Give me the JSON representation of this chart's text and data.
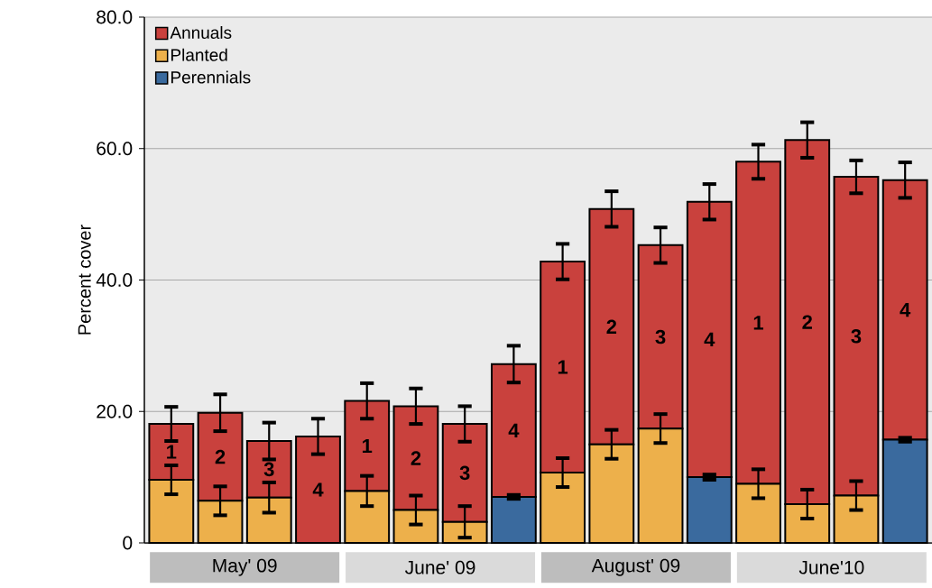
{
  "chart_data": {
    "type": "bar",
    "stacked": true,
    "ylabel": "Percent cover",
    "categories": [
      "1",
      "2",
      "3",
      "4",
      "1",
      "2",
      "3",
      "4",
      "1",
      "2",
      "3",
      "4",
      "1",
      "2",
      "3",
      "4"
    ],
    "series": [
      {
        "name": "Perennials",
        "color": "#3a6a9e",
        "values": [
          0,
          0,
          0,
          0,
          0,
          0,
          0,
          7.0,
          0,
          0,
          0,
          10.0,
          0,
          0,
          0,
          15.7
        ],
        "errors": [
          null,
          null,
          null,
          null,
          null,
          null,
          null,
          0.3,
          null,
          null,
          null,
          0.4,
          null,
          null,
          null,
          0.3
        ]
      },
      {
        "name": "Planted",
        "color": "#edb04b",
        "values": [
          9.6,
          6.4,
          6.9,
          0,
          7.9,
          5.0,
          3.2,
          0,
          10.7,
          15.0,
          17.4,
          0,
          9.0,
          5.9,
          7.2,
          0
        ],
        "errors": [
          2.2,
          2.2,
          2.3,
          null,
          2.3,
          2.2,
          2.4,
          null,
          2.2,
          2.2,
          2.2,
          null,
          2.2,
          2.2,
          2.2,
          null
        ]
      },
      {
        "name": "Annuals",
        "color": "#c9413d",
        "values": [
          8.5,
          13.4,
          8.6,
          16.2,
          13.7,
          15.8,
          14.9,
          20.2,
          32.1,
          35.8,
          27.9,
          41.9,
          49.0,
          55.4,
          48.5,
          39.5
        ],
        "errors": [
          2.6,
          2.8,
          2.8,
          2.7,
          2.7,
          2.7,
          2.7,
          2.8,
          2.7,
          2.7,
          2.7,
          2.7,
          2.6,
          2.7,
          2.5,
          2.7
        ]
      }
    ],
    "ylim": [
      0,
      80
    ],
    "yticks": [
      0,
      {
        "value": 20,
        "label": "20.0"
      },
      {
        "value": 40,
        "label": "40.0"
      },
      {
        "value": 60,
        "label": "60.0"
      },
      {
        "value": 80,
        "label": "80.0"
      }
    ],
    "grid": "y",
    "legend": "top left",
    "annotations": [
      "May' 09",
      "June' 09",
      "August' 09",
      "June'10"
    ]
  }
}
